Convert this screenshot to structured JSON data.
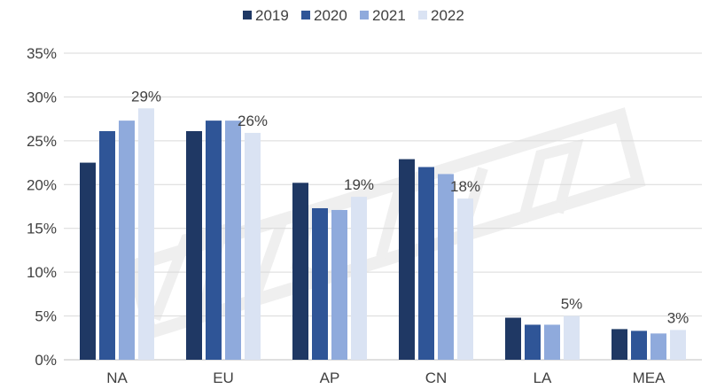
{
  "chart_data": {
    "type": "bar",
    "title": "",
    "xlabel": "",
    "ylabel": "",
    "categories": [
      "NA",
      "EU",
      "AP",
      "CN",
      "LA",
      "MEA"
    ],
    "series": [
      {
        "name": "2019",
        "color": "#1f3864",
        "values": [
          22.5,
          26.1,
          20.2,
          22.9,
          4.8,
          3.5
        ]
      },
      {
        "name": "2020",
        "color": "#2f5597",
        "values": [
          26.1,
          27.3,
          17.3,
          22.0,
          4.0,
          3.3
        ]
      },
      {
        "name": "2021",
        "color": "#8faadc",
        "values": [
          27.3,
          27.3,
          17.1,
          21.2,
          4.0,
          3.0
        ]
      },
      {
        "name": "2022",
        "color": "#dae3f3",
        "values": [
          28.7,
          25.9,
          18.6,
          18.4,
          5.0,
          3.4
        ]
      }
    ],
    "data_labels": [
      "29%",
      "26%",
      "19%",
      "18%",
      "5%",
      "3%"
    ],
    "ylim": [
      0,
      35
    ],
    "yticks": [
      "0%",
      "5%",
      "10%",
      "15%",
      "20%",
      "25%",
      "30%",
      "35%"
    ],
    "ytick_values": [
      0,
      5,
      10,
      15,
      20,
      25,
      30,
      35
    ],
    "grid": true,
    "legend_position": "top-center",
    "watermark": "DISCIEN"
  }
}
